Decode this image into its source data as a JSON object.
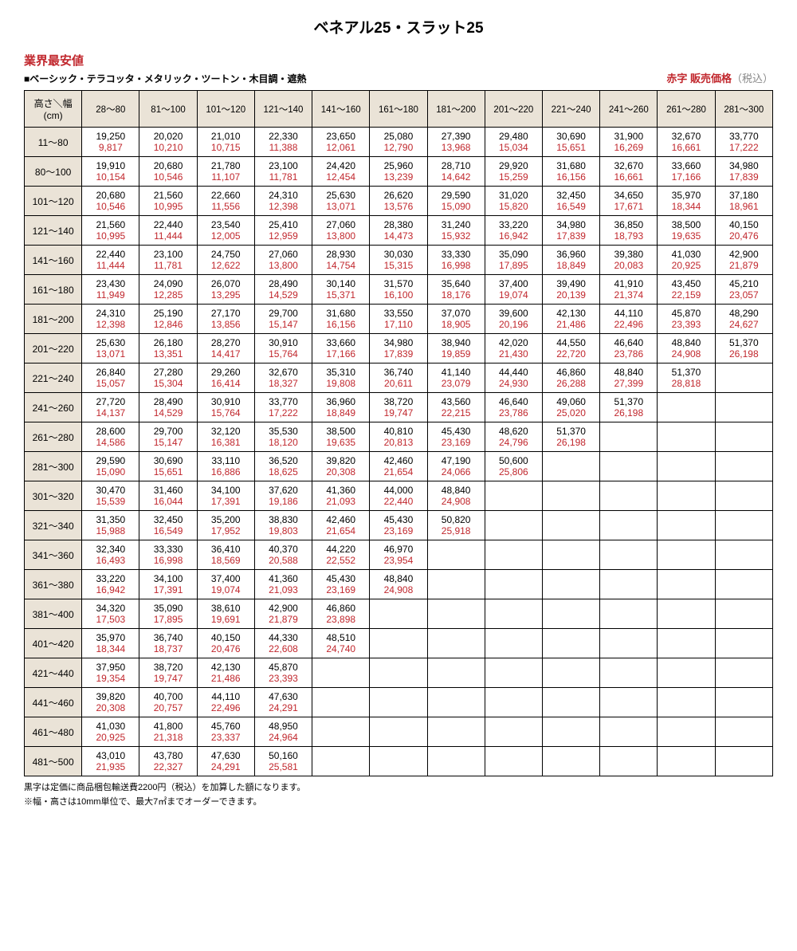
{
  "title": "ベネアル25・スラット25",
  "lowest_price_label": "業界最安値",
  "category_label": "■ベーシック・テラコッタ・メタリック・ツートン・木目調・遮熱",
  "legend_red": "赤字 販売価格",
  "legend_gray": "（税込）",
  "corner_label": "高さ＼幅(cm)",
  "col_headers": [
    "28～80",
    "81～100",
    "101～120",
    "121～140",
    "141～160",
    "161～180",
    "181～200",
    "201～220",
    "221～240",
    "241～260",
    "261～280",
    "281～300"
  ],
  "row_headers": [
    "11～80",
    "80～100",
    "101～120",
    "121～140",
    "141～160",
    "161～180",
    "181～200",
    "201～220",
    "221～240",
    "241～260",
    "261～280",
    "281～300",
    "301～320",
    "321～340",
    "341～360",
    "361～380",
    "381～400",
    "401～420",
    "421～440",
    "441～460",
    "461～480",
    "481～500"
  ],
  "footnote1": "黒字は定価に商品梱包輸送費2200円（税込）を加算した額になります。",
  "footnote2": "※幅・高さは10mm単位で、最大7㎡までオーダーできます。",
  "colors": {
    "red": "#c1272d",
    "header_bg": "#eae3d7",
    "black": "#000000",
    "gray": "#888888"
  },
  "rows": [
    [
      [
        "19,250",
        "9,817"
      ],
      [
        "20,020",
        "10,210"
      ],
      [
        "21,010",
        "10,715"
      ],
      [
        "22,330",
        "11,388"
      ],
      [
        "23,650",
        "12,061"
      ],
      [
        "25,080",
        "12,790"
      ],
      [
        "27,390",
        "13,968"
      ],
      [
        "29,480",
        "15,034"
      ],
      [
        "30,690",
        "15,651"
      ],
      [
        "31,900",
        "16,269"
      ],
      [
        "32,670",
        "16,661"
      ],
      [
        "33,770",
        "17,222"
      ]
    ],
    [
      [
        "19,910",
        "10,154"
      ],
      [
        "20,680",
        "10,546"
      ],
      [
        "21,780",
        "11,107"
      ],
      [
        "23,100",
        "11,781"
      ],
      [
        "24,420",
        "12,454"
      ],
      [
        "25,960",
        "13,239"
      ],
      [
        "28,710",
        "14,642"
      ],
      [
        "29,920",
        "15,259"
      ],
      [
        "31,680",
        "16,156"
      ],
      [
        "32,670",
        "16,661"
      ],
      [
        "33,660",
        "17,166"
      ],
      [
        "34,980",
        "17,839"
      ]
    ],
    [
      [
        "20,680",
        "10,546"
      ],
      [
        "21,560",
        "10,995"
      ],
      [
        "22,660",
        "11,556"
      ],
      [
        "24,310",
        "12,398"
      ],
      [
        "25,630",
        "13,071"
      ],
      [
        "26,620",
        "13,576"
      ],
      [
        "29,590",
        "15,090"
      ],
      [
        "31,020",
        "15,820"
      ],
      [
        "32,450",
        "16,549"
      ],
      [
        "34,650",
        "17,671"
      ],
      [
        "35,970",
        "18,344"
      ],
      [
        "37,180",
        "18,961"
      ]
    ],
    [
      [
        "21,560",
        "10,995"
      ],
      [
        "22,440",
        "11,444"
      ],
      [
        "23,540",
        "12,005"
      ],
      [
        "25,410",
        "12,959"
      ],
      [
        "27,060",
        "13,800"
      ],
      [
        "28,380",
        "14,473"
      ],
      [
        "31,240",
        "15,932"
      ],
      [
        "33,220",
        "16,942"
      ],
      [
        "34,980",
        "17,839"
      ],
      [
        "36,850",
        "18,793"
      ],
      [
        "38,500",
        "19,635"
      ],
      [
        "40,150",
        "20,476"
      ]
    ],
    [
      [
        "22,440",
        "11,444"
      ],
      [
        "23,100",
        "11,781"
      ],
      [
        "24,750",
        "12,622"
      ],
      [
        "27,060",
        "13,800"
      ],
      [
        "28,930",
        "14,754"
      ],
      [
        "30,030",
        "15,315"
      ],
      [
        "33,330",
        "16,998"
      ],
      [
        "35,090",
        "17,895"
      ],
      [
        "36,960",
        "18,849"
      ],
      [
        "39,380",
        "20,083"
      ],
      [
        "41,030",
        "20,925"
      ],
      [
        "42,900",
        "21,879"
      ]
    ],
    [
      [
        "23,430",
        "11,949"
      ],
      [
        "24,090",
        "12,285"
      ],
      [
        "26,070",
        "13,295"
      ],
      [
        "28,490",
        "14,529"
      ],
      [
        "30,140",
        "15,371"
      ],
      [
        "31,570",
        "16,100"
      ],
      [
        "35,640",
        "18,176"
      ],
      [
        "37,400",
        "19,074"
      ],
      [
        "39,490",
        "20,139"
      ],
      [
        "41,910",
        "21,374"
      ],
      [
        "43,450",
        "22,159"
      ],
      [
        "45,210",
        "23,057"
      ]
    ],
    [
      [
        "24,310",
        "12,398"
      ],
      [
        "25,190",
        "12,846"
      ],
      [
        "27,170",
        "13,856"
      ],
      [
        "29,700",
        "15,147"
      ],
      [
        "31,680",
        "16,156"
      ],
      [
        "33,550",
        "17,110"
      ],
      [
        "37,070",
        "18,905"
      ],
      [
        "39,600",
        "20,196"
      ],
      [
        "42,130",
        "21,486"
      ],
      [
        "44,110",
        "22,496"
      ],
      [
        "45,870",
        "23,393"
      ],
      [
        "48,290",
        "24,627"
      ]
    ],
    [
      [
        "25,630",
        "13,071"
      ],
      [
        "26,180",
        "13,351"
      ],
      [
        "28,270",
        "14,417"
      ],
      [
        "30,910",
        "15,764"
      ],
      [
        "33,660",
        "17,166"
      ],
      [
        "34,980",
        "17,839"
      ],
      [
        "38,940",
        "19,859"
      ],
      [
        "42,020",
        "21,430"
      ],
      [
        "44,550",
        "22,720"
      ],
      [
        "46,640",
        "23,786"
      ],
      [
        "48,840",
        "24,908"
      ],
      [
        "51,370",
        "26,198"
      ]
    ],
    [
      [
        "26,840",
        "15,057"
      ],
      [
        "27,280",
        "15,304"
      ],
      [
        "29,260",
        "16,414"
      ],
      [
        "32,670",
        "18,327"
      ],
      [
        "35,310",
        "19,808"
      ],
      [
        "36,740",
        "20,611"
      ],
      [
        "41,140",
        "23,079"
      ],
      [
        "44,440",
        "24,930"
      ],
      [
        "46,860",
        "26,288"
      ],
      [
        "48,840",
        "27,399"
      ],
      [
        "51,370",
        "28,818"
      ],
      null
    ],
    [
      [
        "27,720",
        "14,137"
      ],
      [
        "28,490",
        "14,529"
      ],
      [
        "30,910",
        "15,764"
      ],
      [
        "33,770",
        "17,222"
      ],
      [
        "36,960",
        "18,849"
      ],
      [
        "38,720",
        "19,747"
      ],
      [
        "43,560",
        "22,215"
      ],
      [
        "46,640",
        "23,786"
      ],
      [
        "49,060",
        "25,020"
      ],
      [
        "51,370",
        "26,198"
      ],
      null,
      null
    ],
    [
      [
        "28,600",
        "14,586"
      ],
      [
        "29,700",
        "15,147"
      ],
      [
        "32,120",
        "16,381"
      ],
      [
        "35,530",
        "18,120"
      ],
      [
        "38,500",
        "19,635"
      ],
      [
        "40,810",
        "20,813"
      ],
      [
        "45,430",
        "23,169"
      ],
      [
        "48,620",
        "24,796"
      ],
      [
        "51,370",
        "26,198"
      ],
      null,
      null,
      null
    ],
    [
      [
        "29,590",
        "15,090"
      ],
      [
        "30,690",
        "15,651"
      ],
      [
        "33,110",
        "16,886"
      ],
      [
        "36,520",
        "18,625"
      ],
      [
        "39,820",
        "20,308"
      ],
      [
        "42,460",
        "21,654"
      ],
      [
        "47,190",
        "24,066"
      ],
      [
        "50,600",
        "25,806"
      ],
      null,
      null,
      null,
      null
    ],
    [
      [
        "30,470",
        "15,539"
      ],
      [
        "31,460",
        "16,044"
      ],
      [
        "34,100",
        "17,391"
      ],
      [
        "37,620",
        "19,186"
      ],
      [
        "41,360",
        "21,093"
      ],
      [
        "44,000",
        "22,440"
      ],
      [
        "48,840",
        "24,908"
      ],
      null,
      null,
      null,
      null,
      null
    ],
    [
      [
        "31,350",
        "15,988"
      ],
      [
        "32,450",
        "16,549"
      ],
      [
        "35,200",
        "17,952"
      ],
      [
        "38,830",
        "19,803"
      ],
      [
        "42,460",
        "21,654"
      ],
      [
        "45,430",
        "23,169"
      ],
      [
        "50,820",
        "25,918"
      ],
      null,
      null,
      null,
      null,
      null
    ],
    [
      [
        "32,340",
        "16,493"
      ],
      [
        "33,330",
        "16,998"
      ],
      [
        "36,410",
        "18,569"
      ],
      [
        "40,370",
        "20,588"
      ],
      [
        "44,220",
        "22,552"
      ],
      [
        "46,970",
        "23,954"
      ],
      null,
      null,
      null,
      null,
      null,
      null
    ],
    [
      [
        "33,220",
        "16,942"
      ],
      [
        "34,100",
        "17,391"
      ],
      [
        "37,400",
        "19,074"
      ],
      [
        "41,360",
        "21,093"
      ],
      [
        "45,430",
        "23,169"
      ],
      [
        "48,840",
        "24,908"
      ],
      null,
      null,
      null,
      null,
      null,
      null
    ],
    [
      [
        "34,320",
        "17,503"
      ],
      [
        "35,090",
        "17,895"
      ],
      [
        "38,610",
        "19,691"
      ],
      [
        "42,900",
        "21,879"
      ],
      [
        "46,860",
        "23,898"
      ],
      null,
      null,
      null,
      null,
      null,
      null,
      null
    ],
    [
      [
        "35,970",
        "18,344"
      ],
      [
        "36,740",
        "18,737"
      ],
      [
        "40,150",
        "20,476"
      ],
      [
        "44,330",
        "22,608"
      ],
      [
        "48,510",
        "24,740"
      ],
      null,
      null,
      null,
      null,
      null,
      null,
      null
    ],
    [
      [
        "37,950",
        "19,354"
      ],
      [
        "38,720",
        "19,747"
      ],
      [
        "42,130",
        "21,486"
      ],
      [
        "45,870",
        "23,393"
      ],
      null,
      null,
      null,
      null,
      null,
      null,
      null,
      null
    ],
    [
      [
        "39,820",
        "20,308"
      ],
      [
        "40,700",
        "20,757"
      ],
      [
        "44,110",
        "22,496"
      ],
      [
        "47,630",
        "24,291"
      ],
      null,
      null,
      null,
      null,
      null,
      null,
      null,
      null
    ],
    [
      [
        "41,030",
        "20,925"
      ],
      [
        "41,800",
        "21,318"
      ],
      [
        "45,760",
        "23,337"
      ],
      [
        "48,950",
        "24,964"
      ],
      null,
      null,
      null,
      null,
      null,
      null,
      null,
      null
    ],
    [
      [
        "43,010",
        "21,935"
      ],
      [
        "43,780",
        "22,327"
      ],
      [
        "47,630",
        "24,291"
      ],
      [
        "50,160",
        "25,581"
      ],
      null,
      null,
      null,
      null,
      null,
      null,
      null,
      null
    ]
  ]
}
